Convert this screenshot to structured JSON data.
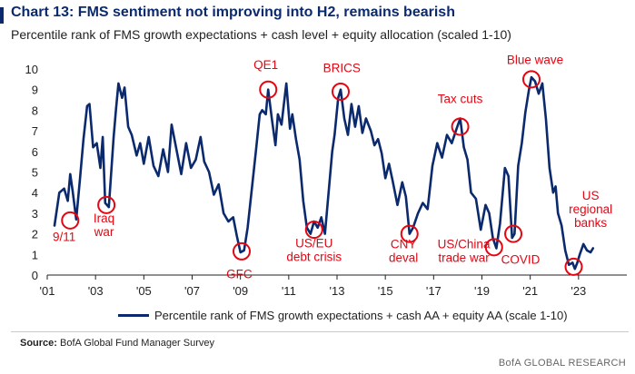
{
  "title": "Chart 13: FMS sentiment not improving into H2, remains bearish",
  "subtitle": "Percentile rank of FMS growth expectations + cash level + equity allocation (scaled 1-10)",
  "source_label": "Source:",
  "source_text": "BofA Global Fund Manager Survey",
  "credit": "BofA GLOBAL RESEARCH",
  "colors": {
    "line": "#0b2a6e",
    "annotation": "#e30613",
    "title": "#0b2a6e"
  },
  "chart_data": {
    "type": "line",
    "title": "",
    "xlabel": "",
    "ylabel": "",
    "x_range": [
      2001,
      2025
    ],
    "ylim": [
      0,
      10
    ],
    "y_ticks": [
      0,
      1,
      2,
      3,
      4,
      5,
      6,
      7,
      8,
      9,
      10
    ],
    "x_tick_labels": [
      "'01",
      "'03",
      "'05",
      "'07",
      "'09",
      "'11",
      "'13",
      "'15",
      "'17",
      "'19",
      "'21",
      "'23"
    ],
    "x_tick_years": [
      2001,
      2003,
      2005,
      2007,
      2009,
      2011,
      2013,
      2015,
      2017,
      2019,
      2021,
      2023
    ],
    "grid": false,
    "legend_position": "bottom",
    "series": [
      {
        "name": "Percentile rank of FMS growth expectations + cash AA + equity AA (scale 1-10)",
        "points": [
          [
            2001.3,
            2.4
          ],
          [
            2001.5,
            4.0
          ],
          [
            2001.7,
            4.2
          ],
          [
            2001.85,
            3.6
          ],
          [
            2001.95,
            4.9
          ],
          [
            2002.05,
            4.1
          ],
          [
            2002.2,
            2.7
          ],
          [
            2002.35,
            4.6
          ],
          [
            2002.5,
            6.6
          ],
          [
            2002.65,
            8.2
          ],
          [
            2002.75,
            8.3
          ],
          [
            2002.9,
            6.2
          ],
          [
            2003.05,
            6.4
          ],
          [
            2003.2,
            5.2
          ],
          [
            2003.3,
            6.7
          ],
          [
            2003.4,
            3.5
          ],
          [
            2003.55,
            3.3
          ],
          [
            2003.75,
            6.7
          ],
          [
            2003.85,
            8.1
          ],
          [
            2003.95,
            9.3
          ],
          [
            2004.1,
            8.6
          ],
          [
            2004.2,
            9.1
          ],
          [
            2004.35,
            7.2
          ],
          [
            2004.5,
            6.8
          ],
          [
            2004.7,
            5.8
          ],
          [
            2004.85,
            6.4
          ],
          [
            2005.0,
            5.4
          ],
          [
            2005.2,
            6.7
          ],
          [
            2005.4,
            5.3
          ],
          [
            2005.6,
            4.8
          ],
          [
            2005.8,
            6.1
          ],
          [
            2006.0,
            5.0
          ],
          [
            2006.15,
            7.3
          ],
          [
            2006.35,
            6.1
          ],
          [
            2006.55,
            4.9
          ],
          [
            2006.75,
            6.4
          ],
          [
            2006.95,
            5.2
          ],
          [
            2007.15,
            5.6
          ],
          [
            2007.35,
            6.7
          ],
          [
            2007.5,
            5.5
          ],
          [
            2007.7,
            5.0
          ],
          [
            2007.9,
            3.9
          ],
          [
            2008.1,
            4.4
          ],
          [
            2008.3,
            3.0
          ],
          [
            2008.5,
            2.6
          ],
          [
            2008.7,
            2.8
          ],
          [
            2008.85,
            1.9
          ],
          [
            2009.0,
            1.1
          ],
          [
            2009.15,
            1.2
          ],
          [
            2009.3,
            2.3
          ],
          [
            2009.5,
            4.5
          ],
          [
            2009.65,
            6.1
          ],
          [
            2009.8,
            7.8
          ],
          [
            2009.9,
            8.0
          ],
          [
            2010.05,
            7.8
          ],
          [
            2010.15,
            9.0
          ],
          [
            2010.3,
            7.6
          ],
          [
            2010.45,
            6.3
          ],
          [
            2010.55,
            7.8
          ],
          [
            2010.7,
            7.3
          ],
          [
            2010.8,
            8.3
          ],
          [
            2010.9,
            9.3
          ],
          [
            2011.05,
            7.1
          ],
          [
            2011.15,
            7.8
          ],
          [
            2011.3,
            6.6
          ],
          [
            2011.45,
            5.6
          ],
          [
            2011.6,
            3.6
          ],
          [
            2011.75,
            2.3
          ],
          [
            2011.9,
            2.0
          ],
          [
            2012.05,
            2.6
          ],
          [
            2012.2,
            2.3
          ],
          [
            2012.35,
            2.8
          ],
          [
            2012.5,
            2.0
          ],
          [
            2012.65,
            4.0
          ],
          [
            2012.8,
            6.0
          ],
          [
            2012.9,
            6.8
          ],
          [
            2013.05,
            8.6
          ],
          [
            2013.15,
            9.0
          ],
          [
            2013.3,
            7.6
          ],
          [
            2013.45,
            6.8
          ],
          [
            2013.6,
            8.3
          ],
          [
            2013.75,
            7.2
          ],
          [
            2013.9,
            8.2
          ],
          [
            2014.05,
            6.9
          ],
          [
            2014.2,
            7.6
          ],
          [
            2014.4,
            7.0
          ],
          [
            2014.55,
            6.3
          ],
          [
            2014.7,
            6.6
          ],
          [
            2014.85,
            5.9
          ],
          [
            2015.0,
            4.7
          ],
          [
            2015.15,
            5.4
          ],
          [
            2015.3,
            4.6
          ],
          [
            2015.5,
            3.4
          ],
          [
            2015.7,
            4.5
          ],
          [
            2015.85,
            3.8
          ],
          [
            2016.0,
            2.0
          ],
          [
            2016.15,
            2.3
          ],
          [
            2016.35,
            3.0
          ],
          [
            2016.55,
            3.5
          ],
          [
            2016.75,
            3.2
          ],
          [
            2016.95,
            5.3
          ],
          [
            2017.15,
            6.4
          ],
          [
            2017.35,
            5.7
          ],
          [
            2017.55,
            6.8
          ],
          [
            2017.75,
            6.4
          ],
          [
            2017.95,
            7.1
          ],
          [
            2018.1,
            7.6
          ],
          [
            2018.25,
            6.2
          ],
          [
            2018.4,
            5.6
          ],
          [
            2018.55,
            4.0
          ],
          [
            2018.75,
            3.7
          ],
          [
            2018.95,
            2.2
          ],
          [
            2019.15,
            3.4
          ],
          [
            2019.3,
            3.0
          ],
          [
            2019.45,
            1.8
          ],
          [
            2019.6,
            1.3
          ],
          [
            2019.75,
            2.5
          ],
          [
            2019.95,
            5.2
          ],
          [
            2020.1,
            4.8
          ],
          [
            2020.25,
            1.8
          ],
          [
            2020.35,
            2.0
          ],
          [
            2020.5,
            5.3
          ],
          [
            2020.65,
            6.4
          ],
          [
            2020.8,
            7.9
          ],
          [
            2020.95,
            9.0
          ],
          [
            2021.05,
            9.6
          ],
          [
            2021.2,
            9.4
          ],
          [
            2021.35,
            8.8
          ],
          [
            2021.5,
            9.3
          ],
          [
            2021.65,
            7.6
          ],
          [
            2021.8,
            5.2
          ],
          [
            2021.95,
            4.0
          ],
          [
            2022.05,
            4.3
          ],
          [
            2022.15,
            3.0
          ],
          [
            2022.3,
            2.4
          ],
          [
            2022.45,
            1.2
          ],
          [
            2022.6,
            0.5
          ],
          [
            2022.75,
            0.6
          ],
          [
            2022.85,
            0.3
          ],
          [
            2022.95,
            0.6
          ],
          [
            2023.05,
            1.0
          ],
          [
            2023.2,
            1.5
          ],
          [
            2023.35,
            1.2
          ],
          [
            2023.5,
            1.1
          ],
          [
            2023.6,
            1.3
          ]
        ]
      }
    ],
    "annotations": [
      {
        "label": "9/11",
        "x": 2001.95,
        "y": 2.65,
        "text_x": 2001.7,
        "text_y": 1.65,
        "anchor": "middle"
      },
      {
        "label": "Iraq\nwar",
        "x": 2003.45,
        "y": 3.4,
        "text_x": 2003.35,
        "text_y": 2.55,
        "anchor": "middle"
      },
      {
        "label": "GFC",
        "x": 2009.05,
        "y": 1.15,
        "text_x": 2008.95,
        "text_y": -0.15,
        "anchor": "middle"
      },
      {
        "label": "QE1",
        "x": 2010.15,
        "y": 9.0,
        "text_x": 2010.05,
        "text_y": 10.0,
        "anchor": "middle"
      },
      {
        "label": "US/EU\ndebt crisis",
        "x": 2012.05,
        "y": 2.2,
        "text_x": 2012.05,
        "text_y": 1.35,
        "anchor": "middle"
      },
      {
        "label": "BRICS",
        "x": 2013.15,
        "y": 8.9,
        "text_x": 2013.2,
        "text_y": 9.85,
        "anchor": "middle"
      },
      {
        "label": "CNY\ndeval",
        "x": 2016.0,
        "y": 2.0,
        "text_x": 2015.75,
        "text_y": 1.3,
        "anchor": "middle"
      },
      {
        "label": "Tax cuts",
        "x": 2018.1,
        "y": 7.2,
        "text_x": 2018.1,
        "text_y": 8.35,
        "anchor": "middle"
      },
      {
        "label": "US/China\ntrade war",
        "x": 2019.5,
        "y": 1.35,
        "text_x": 2018.25,
        "text_y": 1.3,
        "anchor": "middle"
      },
      {
        "label": "COVID",
        "x": 2020.3,
        "y": 2.0,
        "text_x": 2020.6,
        "text_y": 0.55,
        "anchor": "middle"
      },
      {
        "label": "Blue wave",
        "x": 2021.05,
        "y": 9.5,
        "text_x": 2021.2,
        "text_y": 10.25,
        "anchor": "middle"
      },
      {
        "label": "US\nregional\nbanks",
        "x": 2022.8,
        "y": 0.4,
        "text_x": 2023.5,
        "text_y": 3.65,
        "anchor": "middle"
      }
    ]
  }
}
